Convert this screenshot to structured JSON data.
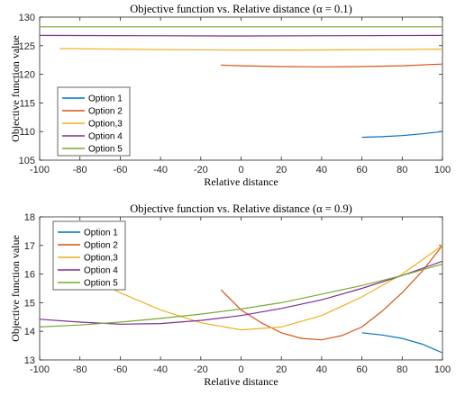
{
  "chart_data": [
    {
      "type": "line",
      "title": "Objective function vs. Relative distance (α = 0.1)",
      "xlabel": "Relative distance",
      "ylabel": "Objective function value",
      "xlim": [
        -100,
        100
      ],
      "ylim": [
        105,
        130
      ],
      "xticks": [
        "-100",
        "-80",
        "-60",
        "-40",
        "-20",
        "0",
        "20",
        "40",
        "60",
        "80",
        "100"
      ],
      "yticks": [
        "105",
        "110",
        "115",
        "120",
        "125",
        "130"
      ],
      "legend_position": "bottom-left",
      "series": [
        {
          "name": "Option 1",
          "color": "#0072BD",
          "x": [
            60,
            70,
            80,
            90,
            100
          ],
          "y": [
            109.0,
            109.1,
            109.3,
            109.6,
            110.0
          ]
        },
        {
          "name": "Option 2",
          "color": "#D95319",
          "x": [
            -10,
            0,
            20,
            40,
            60,
            80,
            100
          ],
          "y": [
            121.6,
            121.5,
            121.35,
            121.3,
            121.35,
            121.5,
            121.8
          ]
        },
        {
          "name": "Option,3",
          "color": "#EDB120",
          "x": [
            -90,
            -60,
            -30,
            0,
            30,
            60,
            100
          ],
          "y": [
            124.5,
            124.4,
            124.3,
            124.25,
            124.25,
            124.3,
            124.4
          ]
        },
        {
          "name": "Option 4",
          "color": "#7E2F8E",
          "x": [
            -100,
            -50,
            0,
            50,
            100
          ],
          "y": [
            126.8,
            126.75,
            126.7,
            126.75,
            126.8
          ]
        },
        {
          "name": "Option 5",
          "color": "#77AC30",
          "x": [
            -100,
            -50,
            0,
            50,
            100
          ],
          "y": [
            128.3,
            128.3,
            128.3,
            128.3,
            128.3
          ]
        }
      ]
    },
    {
      "type": "line",
      "title": "Objective function vs. Relative distance (α = 0.9)",
      "xlabel": "Relative distance",
      "ylabel": "Objective function value",
      "xlim": [
        -100,
        100
      ],
      "ylim": [
        13,
        18
      ],
      "xticks": [
        "-100",
        "-80",
        "-60",
        "-40",
        "-20",
        "0",
        "20",
        "40",
        "60",
        "80",
        "100"
      ],
      "yticks": [
        "13",
        "14",
        "15",
        "16",
        "17",
        "18"
      ],
      "legend_position": "top-left",
      "series": [
        {
          "name": "Option 1",
          "color": "#0072BD",
          "x": [
            60,
            70,
            80,
            90,
            100
          ],
          "y": [
            13.95,
            13.87,
            13.75,
            13.55,
            13.25
          ]
        },
        {
          "name": "Option 2",
          "color": "#D95319",
          "x": [
            -10,
            0,
            10,
            20,
            30,
            40,
            50,
            60,
            70,
            80,
            90,
            100
          ],
          "y": [
            15.45,
            14.75,
            14.3,
            13.95,
            13.75,
            13.7,
            13.85,
            14.15,
            14.7,
            15.35,
            16.1,
            17.0
          ]
        },
        {
          "name": "Option,3",
          "color": "#EDB120",
          "x": [
            -70,
            -60,
            -40,
            -20,
            0,
            20,
            40,
            60,
            80,
            100
          ],
          "y": [
            15.7,
            15.35,
            14.75,
            14.3,
            14.05,
            14.15,
            14.55,
            15.2,
            16.0,
            17.0
          ]
        },
        {
          "name": "Option 4",
          "color": "#7E2F8E",
          "x": [
            -100,
            -80,
            -60,
            -40,
            -20,
            0,
            20,
            40,
            60,
            80,
            100
          ],
          "y": [
            14.42,
            14.32,
            14.25,
            14.27,
            14.38,
            14.55,
            14.8,
            15.1,
            15.5,
            15.95,
            16.45
          ]
        },
        {
          "name": "Option 5",
          "color": "#77AC30",
          "x": [
            -100,
            -80,
            -60,
            -40,
            -20,
            0,
            20,
            40,
            60,
            80,
            100
          ],
          "y": [
            14.15,
            14.22,
            14.32,
            14.45,
            14.6,
            14.78,
            15.0,
            15.3,
            15.6,
            15.95,
            16.35
          ]
        }
      ]
    }
  ]
}
